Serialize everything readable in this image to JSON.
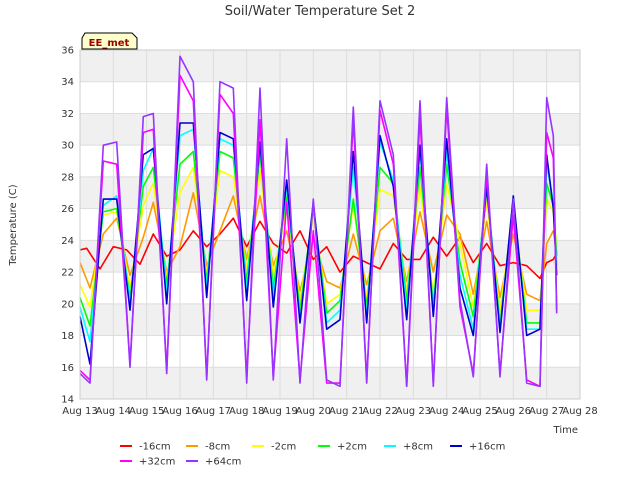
{
  "chart_data": {
    "type": "line",
    "title": "Soil/Water Temperature Set 2",
    "xlabel": "Time",
    "ylabel": "Temperature (C)",
    "site_label": "EE_met",
    "xlim": [
      13,
      28
    ],
    "ylim": [
      14,
      36
    ],
    "x_ticks": [
      13,
      14,
      15,
      16,
      17,
      18,
      19,
      20,
      21,
      22,
      23,
      24,
      25,
      26,
      27,
      28
    ],
    "x_tick_labels": [
      "Aug 13",
      "Aug 14",
      "Aug 15",
      "Aug 16",
      "Aug 17",
      "Aug 18",
      "Aug 19",
      "Aug 20",
      "Aug 21",
      "Aug 22",
      "Aug 23",
      "Aug 24",
      "Aug 25",
      "Aug 26",
      "Aug 27",
      "Aug 28"
    ],
    "y_ticks": [
      14,
      16,
      18,
      20,
      22,
      24,
      26,
      28,
      30,
      32,
      34,
      36
    ],
    "y_tick_labels": [
      "14",
      "16",
      "18",
      "20",
      "22",
      "24",
      "26",
      "28",
      "30",
      "32",
      "34",
      "36"
    ],
    "grid": true,
    "legend_position": "bottom",
    "series": [
      {
        "name": "-16cm",
        "color": "#ff0000",
        "x": [
          13.0,
          13.2,
          13.6,
          14.0,
          14.4,
          14.8,
          15.2,
          15.6,
          16.0,
          16.4,
          16.8,
          17.2,
          17.6,
          18.0,
          18.4,
          18.8,
          19.2,
          19.6,
          20.0,
          20.4,
          20.8,
          21.2,
          21.6,
          22.0,
          22.4,
          22.8,
          23.2,
          23.6,
          24.0,
          24.4,
          24.8,
          25.2,
          25.6,
          26.0,
          26.4,
          26.8,
          27.0,
          27.2,
          27.3
        ],
        "y": [
          23.4,
          23.5,
          22.2,
          23.6,
          23.4,
          22.5,
          24.4,
          23.0,
          23.4,
          24.6,
          23.6,
          24.4,
          25.4,
          23.6,
          25.2,
          23.8,
          23.2,
          24.6,
          22.8,
          23.6,
          22.0,
          23.0,
          22.6,
          22.2,
          23.8,
          22.8,
          22.8,
          24.2,
          23.0,
          24.2,
          22.6,
          23.8,
          22.4,
          22.6,
          22.4,
          21.6,
          22.6,
          22.8,
          23.2
        ]
      },
      {
        "name": "-8cm",
        "color": "#ff9900",
        "x": [
          13.0,
          13.3,
          13.7,
          14.1,
          14.5,
          14.9,
          15.2,
          15.6,
          16.0,
          16.4,
          16.8,
          17.2,
          17.6,
          18.0,
          18.4,
          18.8,
          19.2,
          19.6,
          20.0,
          20.4,
          20.8,
          21.2,
          21.6,
          22.0,
          22.4,
          22.8,
          23.2,
          23.6,
          24.0,
          24.4,
          24.8,
          25.2,
          25.6,
          26.0,
          26.4,
          26.8,
          27.0,
          27.2,
          27.3
        ],
        "y": [
          22.6,
          21.0,
          24.4,
          25.4,
          21.8,
          24.2,
          26.4,
          22.0,
          23.6,
          27.0,
          22.4,
          24.6,
          26.8,
          22.8,
          26.8,
          22.4,
          24.6,
          20.8,
          24.2,
          21.4,
          21.0,
          24.4,
          21.2,
          24.6,
          25.4,
          21.4,
          25.8,
          22.0,
          25.6,
          24.4,
          20.6,
          25.2,
          20.4,
          24.4,
          20.6,
          20.2,
          23.8,
          24.6,
          23.2
        ]
      },
      {
        "name": "-2cm",
        "color": "#ffff00",
        "x": [
          13.0,
          13.3,
          13.7,
          14.1,
          14.5,
          14.9,
          15.2,
          15.6,
          16.0,
          16.4,
          16.8,
          17.2,
          17.6,
          18.0,
          18.4,
          18.8,
          19.2,
          19.6,
          20.0,
          20.4,
          20.8,
          21.2,
          21.6,
          22.0,
          22.4,
          22.8,
          23.2,
          23.6,
          24.0,
          24.4,
          24.8,
          25.2,
          25.6,
          26.0,
          26.4,
          26.8,
          27.0,
          27.2,
          27.3
        ],
        "y": [
          21.2,
          19.8,
          25.6,
          25.8,
          21.0,
          26.2,
          27.6,
          21.6,
          27.0,
          28.6,
          21.8,
          28.4,
          28.0,
          22.2,
          28.4,
          21.8,
          26.0,
          20.2,
          25.6,
          20.0,
          20.6,
          26.2,
          20.4,
          27.2,
          26.8,
          20.8,
          27.4,
          20.6,
          27.6,
          23.8,
          19.8,
          26.4,
          19.6,
          25.8,
          19.6,
          19.6,
          26.6,
          25.8,
          23.6
        ]
      },
      {
        "name": "+2cm",
        "color": "#00ff00",
        "x": [
          13.0,
          13.3,
          13.7,
          14.1,
          14.5,
          14.9,
          15.2,
          15.6,
          16.0,
          16.4,
          16.8,
          17.2,
          17.6,
          18.0,
          18.4,
          18.8,
          19.2,
          19.6,
          20.0,
          20.4,
          20.8,
          21.2,
          21.6,
          22.0,
          22.4,
          22.8,
          23.2,
          23.6,
          24.0,
          24.4,
          24.8,
          25.2,
          25.6,
          26.0,
          26.4,
          26.8,
          27.0,
          27.2,
          27.3
        ],
        "y": [
          20.4,
          18.6,
          25.8,
          26.0,
          20.4,
          27.4,
          28.6,
          21.2,
          28.8,
          29.6,
          21.4,
          29.6,
          29.2,
          21.4,
          29.4,
          21.0,
          26.8,
          19.6,
          26.0,
          19.4,
          20.2,
          26.6,
          19.8,
          28.6,
          27.6,
          20.2,
          28.6,
          20.0,
          28.8,
          22.6,
          19.2,
          27.2,
          18.8,
          26.2,
          18.8,
          18.8,
          27.6,
          26.2,
          23.0
        ]
      },
      {
        "name": "+8cm",
        "color": "#00ffff",
        "x": [
          13.0,
          13.3,
          13.7,
          14.1,
          14.5,
          14.9,
          15.2,
          15.6,
          16.0,
          16.4,
          16.8,
          17.2,
          17.6,
          18.0,
          18.4,
          18.8,
          19.2,
          19.6,
          20.0,
          20.4,
          20.8,
          21.2,
          21.6,
          22.0,
          22.4,
          22.8,
          23.2,
          23.6,
          24.0,
          24.4,
          24.8,
          25.2,
          25.6,
          26.0,
          26.4,
          26.8,
          27.0,
          27.2,
          27.3
        ],
        "y": [
          19.8,
          17.6,
          26.2,
          26.8,
          20.0,
          28.4,
          29.8,
          20.6,
          30.6,
          31.0,
          21.0,
          30.4,
          30.0,
          20.8,
          30.0,
          20.4,
          27.4,
          19.0,
          26.2,
          18.8,
          19.6,
          28.6,
          19.2,
          30.2,
          27.8,
          19.6,
          29.6,
          19.6,
          29.6,
          21.8,
          18.4,
          27.6,
          18.4,
          26.6,
          18.4,
          18.4,
          28.8,
          26.4,
          22.4
        ]
      },
      {
        "name": "+16cm",
        "color": "#0000cc",
        "x": [
          13.0,
          13.3,
          13.7,
          14.1,
          14.5,
          14.9,
          15.2,
          15.6,
          16.0,
          16.4,
          16.8,
          17.2,
          17.6,
          18.0,
          18.4,
          18.8,
          19.2,
          19.6,
          20.0,
          20.4,
          20.8,
          21.2,
          21.6,
          22.0,
          22.4,
          22.8,
          23.2,
          23.6,
          24.0,
          24.4,
          24.8,
          25.2,
          25.6,
          26.0,
          26.4,
          26.8,
          27.0,
          27.2,
          27.3
        ],
        "y": [
          19.2,
          16.2,
          26.6,
          26.6,
          19.6,
          29.4,
          29.8,
          20.0,
          31.4,
          31.4,
          20.4,
          30.8,
          30.4,
          20.2,
          30.2,
          19.8,
          27.8,
          18.8,
          26.4,
          18.4,
          19.0,
          29.6,
          18.8,
          30.6,
          27.4,
          19.0,
          30.0,
          19.2,
          30.4,
          21.0,
          18.0,
          27.4,
          18.2,
          26.8,
          18.0,
          18.4,
          29.4,
          26.0,
          21.8
        ]
      },
      {
        "name": "+32cm",
        "color": "#ff00ff",
        "x": [
          13.0,
          13.3,
          13.7,
          14.1,
          14.5,
          14.9,
          15.2,
          15.6,
          16.0,
          16.4,
          16.8,
          17.2,
          17.6,
          18.0,
          18.4,
          18.8,
          19.2,
          19.6,
          20.0,
          20.4,
          20.8,
          21.2,
          21.6,
          22.0,
          22.4,
          22.8,
          23.2,
          23.6,
          24.0,
          24.4,
          24.8,
          25.2,
          25.6,
          26.0,
          26.4,
          26.8,
          27.0,
          27.2,
          27.3
        ],
        "y": [
          15.8,
          15.2,
          29.0,
          28.8,
          16.2,
          30.8,
          31.0,
          15.8,
          34.4,
          32.8,
          15.4,
          33.2,
          32.0,
          15.4,
          31.6,
          15.4,
          26.4,
          15.2,
          24.6,
          15.0,
          15.0,
          31.6,
          15.2,
          32.2,
          28.8,
          14.8,
          31.8,
          15.0,
          32.4,
          19.8,
          15.6,
          28.2,
          15.6,
          25.6,
          15.2,
          14.8,
          30.8,
          29.2,
          19.6
        ]
      },
      {
        "name": "+64cm",
        "color": "#9933ff",
        "x": [
          13.0,
          13.3,
          13.7,
          14.1,
          14.5,
          14.9,
          15.2,
          15.6,
          16.0,
          16.4,
          16.8,
          17.2,
          17.6,
          18.0,
          18.4,
          18.8,
          19.2,
          19.6,
          20.0,
          20.4,
          20.8,
          21.2,
          21.6,
          22.0,
          22.4,
          22.8,
          23.2,
          23.6,
          24.0,
          24.4,
          24.8,
          25.2,
          25.6,
          26.0,
          26.4,
          26.8,
          27.0,
          27.2,
          27.3
        ],
        "y": [
          15.6,
          15.0,
          30.0,
          30.2,
          16.0,
          31.8,
          32.0,
          15.6,
          35.6,
          34.0,
          15.2,
          34.0,
          33.6,
          15.0,
          33.6,
          15.2,
          30.4,
          15.0,
          26.6,
          15.2,
          14.8,
          32.4,
          15.0,
          32.8,
          29.4,
          14.8,
          32.8,
          14.8,
          33.0,
          20.2,
          15.4,
          28.8,
          15.4,
          26.6,
          15.0,
          14.8,
          33.0,
          30.6,
          19.4
        ]
      }
    ]
  }
}
